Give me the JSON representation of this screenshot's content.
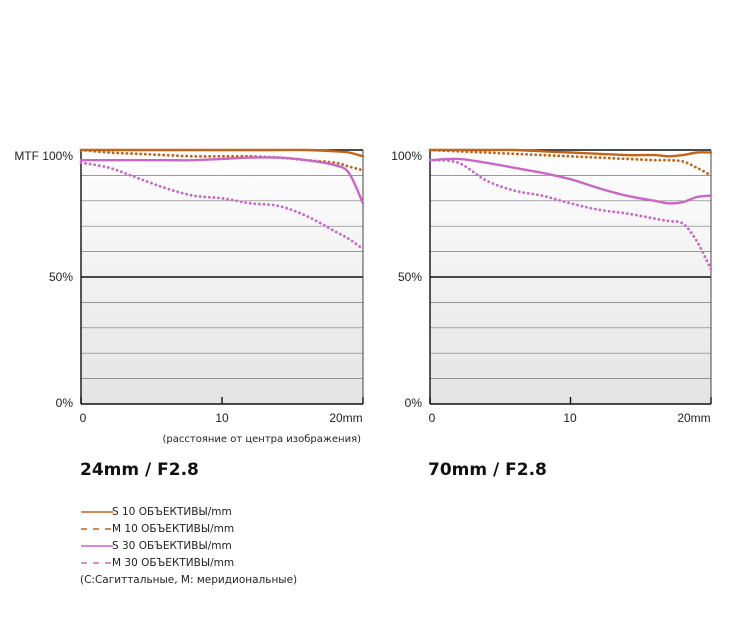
{
  "chart_data": [
    {
      "type": "line",
      "title": "24mm / F2.8",
      "ylabel": "MTF",
      "x_note": "(расстояние от центра изображения)",
      "xlim": [
        0,
        20
      ],
      "ylim": [
        0,
        100
      ],
      "x_tick_labels": [
        "0",
        "10",
        "20mm"
      ],
      "y_tick_labels": [
        "MTF 100%",
        "50%",
        "0%"
      ],
      "x": [
        0,
        2,
        4,
        6,
        8,
        10,
        12,
        14,
        16,
        18,
        19,
        20
      ],
      "series": [
        {
          "name": "S 10 ОБЪЕКТИВЫ/mm",
          "color": "#c0651a",
          "style": "solid",
          "values": [
            100,
            100,
            100,
            100,
            100,
            100,
            100,
            100,
            100,
            99.5,
            99,
            97.5
          ]
        },
        {
          "name": "M 10 ОБЪЕКТИВЫ/mm",
          "color": "#c0651a",
          "style": "dotted",
          "values": [
            100,
            99,
            98.5,
            98,
            97.5,
            97.5,
            97.5,
            97,
            96,
            95,
            93.5,
            92
          ]
        },
        {
          "name": "S 30 ОБЪЕКТИВЫ/mm",
          "color": "#c867c8",
          "style": "solid",
          "values": [
            96,
            96,
            96,
            96,
            96,
            96.5,
            97,
            97,
            96,
            94,
            91,
            79
          ]
        },
        {
          "name": "M 30 ОБЪЕКТИВЫ/mm",
          "color": "#c867c8",
          "style": "dotted",
          "values": [
            95,
            93,
            89,
            85,
            82,
            81,
            79,
            78,
            74,
            68,
            65,
            61
          ]
        }
      ]
    },
    {
      "type": "line",
      "title": "70mm / F2.8",
      "xlim": [
        0,
        20
      ],
      "ylim": [
        0,
        100
      ],
      "x_tick_labels": [
        "0",
        "10",
        "20mm"
      ],
      "y_tick_labels": [
        "100%",
        "50%",
        "0%"
      ],
      "x": [
        0,
        2,
        4,
        6,
        8,
        10,
        12,
        14,
        16,
        17,
        18,
        19,
        20
      ],
      "series": [
        {
          "name": "S 10 ОБЪЕКТИВЫ/mm",
          "color": "#c0651a",
          "style": "solid",
          "values": [
            100,
            100,
            100,
            100,
            99.5,
            99,
            98.5,
            98,
            98,
            97.5,
            98,
            99,
            99
          ]
        },
        {
          "name": "M 10 ОБЪЕКТИВЫ/mm",
          "color": "#c0651a",
          "style": "dotted",
          "values": [
            100,
            99.5,
            99,
            98.5,
            98,
            97.5,
            97,
            96.5,
            96,
            96,
            95.5,
            93,
            90
          ]
        },
        {
          "name": "S 30 ОБЪЕКТИВЫ/mm",
          "color": "#c867c8",
          "style": "solid",
          "values": [
            96,
            96.5,
            95,
            93,
            91,
            88.5,
            85,
            82,
            80,
            79,
            79.5,
            81.5,
            82
          ]
        },
        {
          "name": "M 30 ОБЪЕКТИВЫ/mm",
          "color": "#c867c8",
          "style": "dotted",
          "values": [
            96,
            95,
            88,
            84,
            82,
            79,
            76.5,
            75,
            73,
            72,
            71,
            64,
            53
          ]
        }
      ]
    }
  ],
  "legend": {
    "items": [
      {
        "label": "S 10 ОБЪЕКТИВЫ/mm",
        "color": "#c0651a",
        "style": "solid"
      },
      {
        "label": "M 10 ОБЪЕКТИВЫ/mm",
        "color": "#c0651a",
        "style": "dashed"
      },
      {
        "label": "S 30 ОБЪЕКТИВЫ/mm",
        "color": "#c867c8",
        "style": "solid"
      },
      {
        "label": "M 30 ОБЪЕКТИВЫ/mm",
        "color": "#c867c8",
        "style": "dashed"
      }
    ],
    "note": "(С:Сагиттальные, М: меридиональные)"
  }
}
